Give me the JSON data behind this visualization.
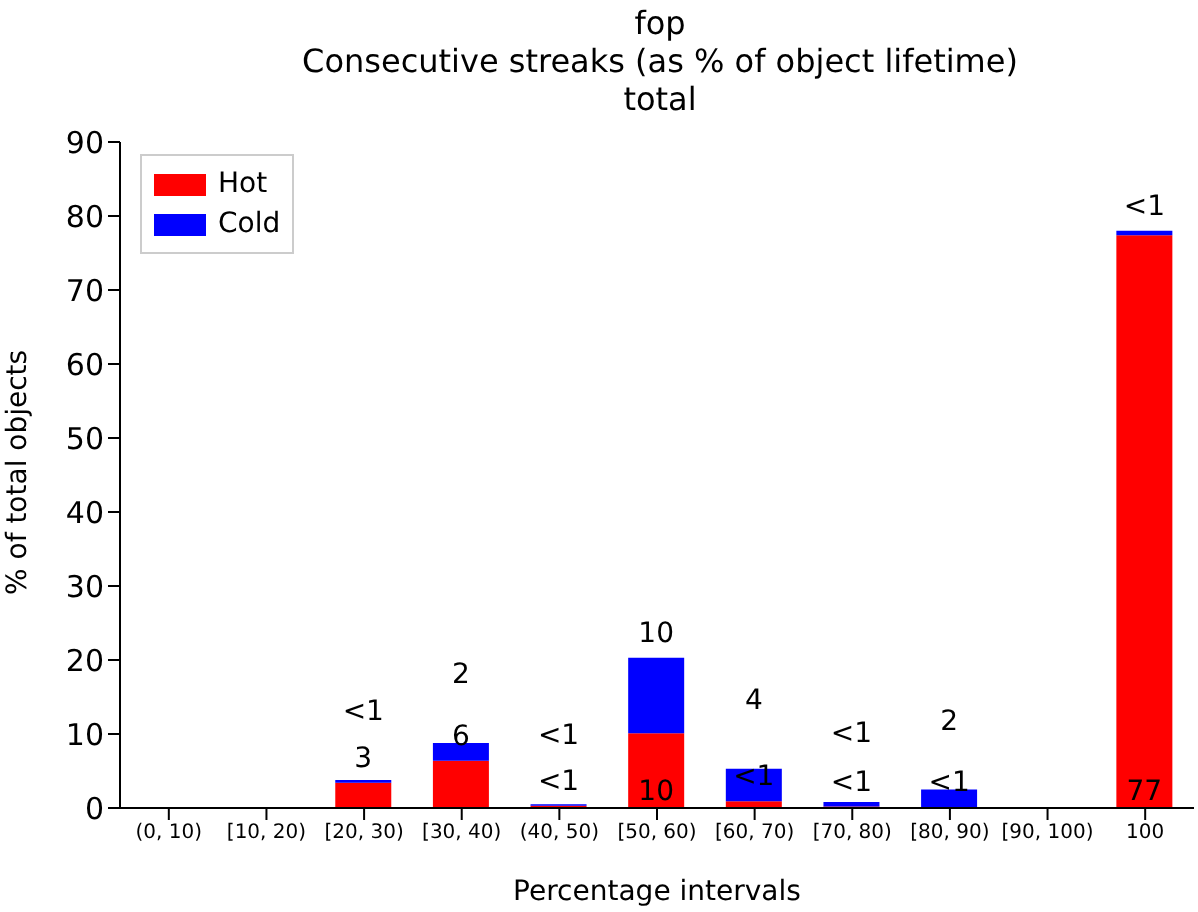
{
  "chart_data": {
    "type": "bar",
    "title": "fop\nConsecutive streaks (as % of object lifetime)\ntotal",
    "xlabel": "Percentage intervals",
    "ylabel": "% of total objects",
    "categories": [
      "(0, 10)",
      "[10, 20)",
      "[20, 30)",
      "[30, 40)",
      "(40, 50)",
      "[50, 60)",
      "[60, 70)",
      "[70, 80)",
      "[80, 90)",
      "[90, 100)",
      "100"
    ],
    "stacked": true,
    "legend": "top left",
    "grid": false,
    "ylim": [
      0,
      90
    ],
    "yticks": [
      0,
      10,
      20,
      30,
      40,
      50,
      60,
      70,
      80,
      90
    ],
    "series": [
      {
        "name": "Hot",
        "color": "#ff0000",
        "values": [
          0,
          0,
          3.4,
          6.4,
          0.3,
          10.1,
          0.9,
          0.2,
          0.1,
          0,
          77.4
        ],
        "value_labels": [
          null,
          null,
          "3",
          "6",
          "<1",
          "10",
          "<1",
          "<1",
          "<1",
          null,
          "77"
        ]
      },
      {
        "name": "Cold",
        "color": "#0000ff",
        "values": [
          0,
          0,
          0.4,
          2.4,
          0.2,
          10.2,
          4.4,
          0.6,
          2.4,
          0,
          0.6
        ],
        "value_labels": [
          null,
          null,
          "<1",
          "2",
          "<1",
          "10",
          "4",
          "<1",
          "2",
          null,
          "<1"
        ]
      }
    ]
  }
}
